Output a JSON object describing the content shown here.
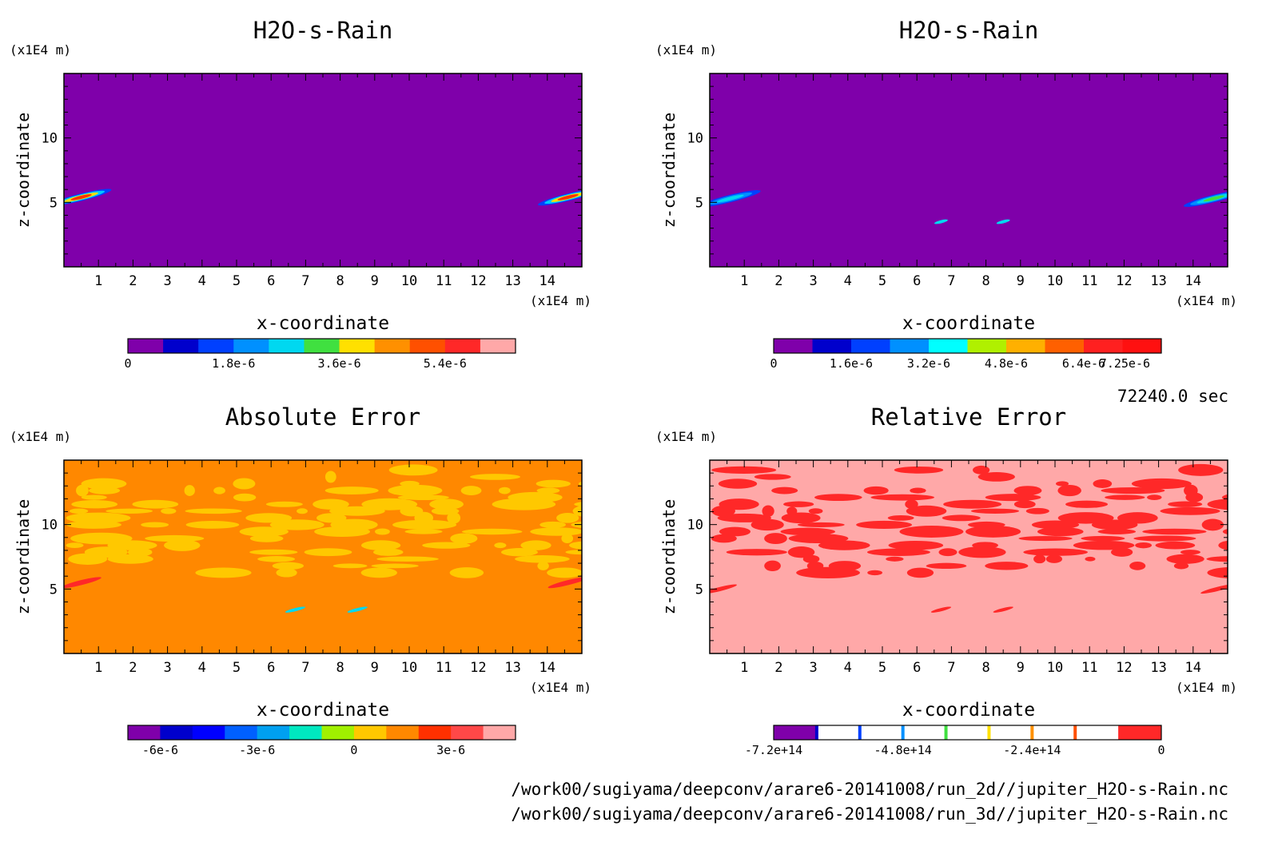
{
  "time_label": "72240.0 sec",
  "file_paths": [
    "/work00/sugiyama/deepconv/arare6-20141008/run_2d//jupiter_H2O-s-Rain.nc",
    "/work00/sugiyama/deepconv/arare6-20141008/run_3d//jupiter_H2O-s-Rain.nc"
  ],
  "chart_data": [
    {
      "type": "heatmap",
      "title": "H2O-s-Rain",
      "xlabel": "x-coordinate",
      "ylabel": "z-coordinate",
      "x_unit": "(x1E4 m)",
      "y_unit": "(x1E4 m)",
      "xlim": [
        0,
        15
      ],
      "ylim": [
        0,
        15
      ],
      "x_ticks": [
        1,
        2,
        3,
        4,
        5,
        6,
        7,
        8,
        9,
        10,
        11,
        12,
        13,
        14
      ],
      "y_ticks": [
        5,
        10
      ],
      "background_color": "#7f00aa",
      "features": [
        {
          "x": 0.5,
          "z": 5.4,
          "len": 0.9,
          "colors": [
            "#0040ff",
            "#00c8ff",
            "#ffe000",
            "#ff3000"
          ]
        },
        {
          "x": 14.6,
          "z": 5.4,
          "len": 0.9,
          "colors": [
            "#0040ff",
            "#00c8ff",
            "#ffe000",
            "#ff3000"
          ]
        }
      ],
      "colorbar": {
        "colors": [
          "#7f00aa",
          "#0000cc",
          "#0040ff",
          "#0090ff",
          "#00d8f0",
          "#40e040",
          "#ffe000",
          "#ff9000",
          "#ff5000",
          "#ff2828",
          "#ffa8a8"
        ],
        "tick_labels": [
          "0",
          "1.8e-6",
          "3.6e-6",
          "5.4e-6"
        ],
        "tick_positions": [
          0,
          3,
          6,
          9
        ]
      }
    },
    {
      "type": "heatmap",
      "title": "H2O-s-Rain",
      "xlabel": "x-coordinate",
      "ylabel": "z-coordinate",
      "x_unit": "(x1E4 m)",
      "y_unit": "(x1E4 m)",
      "xlim": [
        0,
        15
      ],
      "ylim": [
        0,
        15
      ],
      "x_ticks": [
        1,
        2,
        3,
        4,
        5,
        6,
        7,
        8,
        9,
        10,
        11,
        12,
        13,
        14
      ],
      "y_ticks": [
        5,
        10
      ],
      "background_color": "#7f00aa",
      "features": [
        {
          "x": 0.6,
          "z": 5.3,
          "len": 0.9,
          "colors": [
            "#0040ff",
            "#0090ff",
            "#00d8f0"
          ]
        },
        {
          "x": 14.6,
          "z": 5.3,
          "len": 0.9,
          "colors": [
            "#0040ff",
            "#0090ff",
            "#00d8f0",
            "#40e040"
          ]
        },
        {
          "x": 6.7,
          "z": 3.5,
          "len": 0.2,
          "colors": [
            "#00d8f0"
          ]
        },
        {
          "x": 8.5,
          "z": 3.5,
          "len": 0.2,
          "colors": [
            "#00d8f0"
          ]
        }
      ],
      "colorbar": {
        "colors": [
          "#7f00aa",
          "#0000cc",
          "#0040ff",
          "#0090ff",
          "#00ffff",
          "#b0f000",
          "#ffb000",
          "#ff6000",
          "#ff2020",
          "#ff1010"
        ],
        "tick_labels": [
          "0",
          "1.6e-6",
          "3.2e-6",
          "4.8e-6",
          "6.4e-6",
          "7.25e-6"
        ],
        "tick_positions": [
          0,
          2,
          4,
          6,
          8,
          9.06
        ]
      }
    },
    {
      "type": "heatmap",
      "title": "Absolute Error",
      "xlabel": "x-coordinate",
      "ylabel": "z-coordinate",
      "x_unit": "(x1E4 m)",
      "y_unit": "(x1E4 m)",
      "xlim": [
        0,
        15
      ],
      "ylim": [
        0,
        15
      ],
      "x_ticks": [
        1,
        2,
        3,
        4,
        5,
        6,
        7,
        8,
        9,
        10,
        11,
        12,
        13,
        14
      ],
      "y_ticks": [
        5,
        10
      ],
      "background_color": "#ff8800",
      "pattern_color": "#ffc800",
      "pattern_zmin": 6.0,
      "pattern_zmax": 14.5,
      "features": [
        {
          "x": 0.5,
          "z": 5.5,
          "len": 0.6,
          "colors": [
            "#ff2828"
          ]
        },
        {
          "x": 14.6,
          "z": 5.5,
          "len": 0.6,
          "colors": [
            "#ff2828"
          ]
        },
        {
          "x": 6.7,
          "z": 3.4,
          "len": 0.3,
          "colors": [
            "#00d8f0"
          ]
        },
        {
          "x": 8.5,
          "z": 3.4,
          "len": 0.3,
          "colors": [
            "#00d8f0"
          ]
        }
      ],
      "colorbar": {
        "colors": [
          "#7f00aa",
          "#0000cc",
          "#0000ff",
          "#0060ff",
          "#00a0f0",
          "#00e8c0",
          "#a0f000",
          "#ffc800",
          "#ff8800",
          "#ff3000",
          "#ff4848",
          "#ffa8a8"
        ],
        "tick_labels": [
          "-6e-6",
          "-3e-6",
          "0",
          "3e-6"
        ],
        "tick_positions": [
          1,
          4,
          7,
          10
        ]
      }
    },
    {
      "type": "heatmap",
      "title": "Relative Error",
      "xlabel": "x-coordinate",
      "ylabel": "z-coordinate",
      "x_unit": "(x1E4 m)",
      "y_unit": "(x1E4 m)",
      "xlim": [
        0,
        15
      ],
      "ylim": [
        0,
        15
      ],
      "x_ticks": [
        1,
        2,
        3,
        4,
        5,
        6,
        7,
        8,
        9,
        10,
        11,
        12,
        13,
        14
      ],
      "y_ticks": [
        5,
        10
      ],
      "background_color": "#ffa8a8",
      "pattern_color": "#ff2828",
      "pattern_zmin": 6.0,
      "pattern_zmax": 14.5,
      "features": [
        {
          "x": 0.3,
          "z": 5.0,
          "len": 0.5,
          "colors": [
            "#ff2828"
          ]
        },
        {
          "x": 14.7,
          "z": 5.0,
          "len": 0.5,
          "colors": [
            "#ff2828"
          ]
        },
        {
          "x": 6.7,
          "z": 3.4,
          "len": 0.3,
          "colors": [
            "#ff2828"
          ]
        },
        {
          "x": 8.5,
          "z": 3.4,
          "len": 0.3,
          "colors": [
            "#ff2828"
          ]
        }
      ],
      "colorbar": {
        "colors": [
          "#7f00aa",
          "#ffffff",
          "#ffffff",
          "#ffffff",
          "#ffffff",
          "#ffffff",
          "#ffffff",
          "#ffffff",
          "#ff2828"
        ],
        "separators": [
          "#0000cc",
          "#0040ff",
          "#0090ff",
          "#40e040",
          "#ffe000",
          "#ff9000",
          "#ff5000"
        ],
        "tick_labels": [
          "-7.2e+14",
          "-4.8e+14",
          "-2.4e+14",
          "0"
        ],
        "tick_positions": [
          0,
          3,
          6,
          9
        ]
      }
    }
  ]
}
